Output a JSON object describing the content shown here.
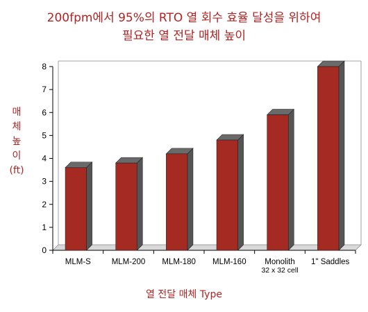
{
  "chart_data": {
    "type": "bar",
    "title_line1": "200fpm에서 95%의 RTO 열 회수 효율 달성을 위하여",
    "title_line2": "필요한 열 전달 매체 높이",
    "ylabel_chars": [
      "매",
      "체",
      "높",
      "이",
      "(ft)"
    ],
    "xlabel": "열 전달 매체 Type",
    "categories": [
      [
        "MLM-S"
      ],
      [
        "MLM-200"
      ],
      [
        "MLM-180"
      ],
      [
        "MLM-160"
      ],
      [
        "Monolith",
        "32 x 32 cell"
      ],
      [
        "1\" Saddles"
      ]
    ],
    "values": [
      3.6,
      3.8,
      4.2,
      4.8,
      5.9,
      8.0
    ],
    "ylim": [
      0,
      8
    ],
    "yticks": [
      "0",
      "1",
      "2",
      "3",
      "4",
      "5",
      "6",
      "7",
      "8"
    ],
    "grid": false,
    "bar_color": "#a52a22"
  }
}
